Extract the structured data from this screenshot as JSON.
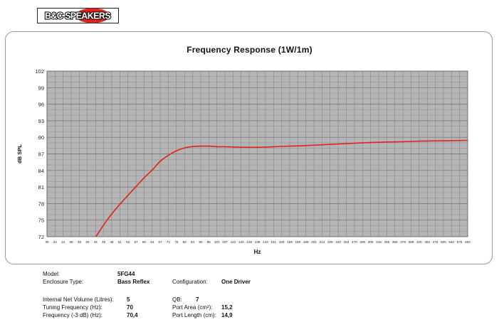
{
  "brand": {
    "logo_text": "B&C SPEAKERS"
  },
  "chart_data": {
    "type": "line",
    "title": "Frequency Response (1W/1m)",
    "xlabel": "Hz",
    "ylabel": "dB SPL",
    "ylim": [
      72,
      102
    ],
    "y_ticks": [
      "72",
      "75",
      "78",
      "81",
      "84",
      "87",
      "90",
      "93",
      "96",
      "99",
      "102"
    ],
    "x_ticks": [
      "30",
      "32",
      "34",
      "36",
      "38",
      "40",
      "42",
      "45",
      "48",
      "51",
      "54",
      "57",
      "60",
      "64",
      "67",
      "71",
      "75",
      "80",
      "84",
      "90",
      "95",
      "101",
      "107",
      "113",
      "120",
      "128",
      "135",
      "143",
      "151",
      "159",
      "169",
      "180",
      "189",
      "201",
      "213",
      "225",
      "240",
      "253",
      "270",
      "285",
      "300",
      "318",
      "336",
      "356",
      "378",
      "398",
      "425",
      "450",
      "475",
      "500",
      "540",
      "575",
      "600"
    ],
    "xlim": [
      30,
      600
    ],
    "x_scale": "log",
    "grid": true,
    "series": [
      {
        "color": "#e0231b",
        "x": [
          42.5,
          45,
          48,
          51,
          54,
          57,
          60,
          64,
          67,
          71,
          75,
          80,
          84,
          90,
          95,
          101,
          107,
          113,
          120,
          135,
          151,
          169,
          189,
          213,
          240,
          270,
          300,
          336,
          378,
          425,
          475,
          540,
          600
        ],
        "y": [
          72,
          74.2,
          76.4,
          78.2,
          79.8,
          81.3,
          82.7,
          84.3,
          85.6,
          86.7,
          87.5,
          88.1,
          88.3,
          88.4,
          88.4,
          88.3,
          88.3,
          88.25,
          88.2,
          88.2,
          88.3,
          88.4,
          88.5,
          88.65,
          88.8,
          88.95,
          89.05,
          89.15,
          89.2,
          89.3,
          89.35,
          89.4,
          89.45
        ]
      }
    ]
  },
  "specs": {
    "model_label": "Model:",
    "model_value": "5FG44",
    "enclosure_label": "Enclosure Type:",
    "enclosure_value": "Bass Reflex",
    "configuration_label": "Configuration:",
    "configuration_value": "One Driver",
    "volume_label": "Internal  Net Volume (Litres):",
    "volume_value": "5",
    "qb_label": "QB:",
    "qb_value": "7",
    "tuning_label": "Tuning Frequency (Hz):",
    "tuning_value": "70",
    "port_area_label": "Port Area (cm²):",
    "port_area_value": "15,2",
    "f3_label": "Frequency (-3 dB) (Hz):",
    "f3_value": "70,4",
    "port_length_label": "Port Length (cm):",
    "port_length_value": "14,9"
  }
}
